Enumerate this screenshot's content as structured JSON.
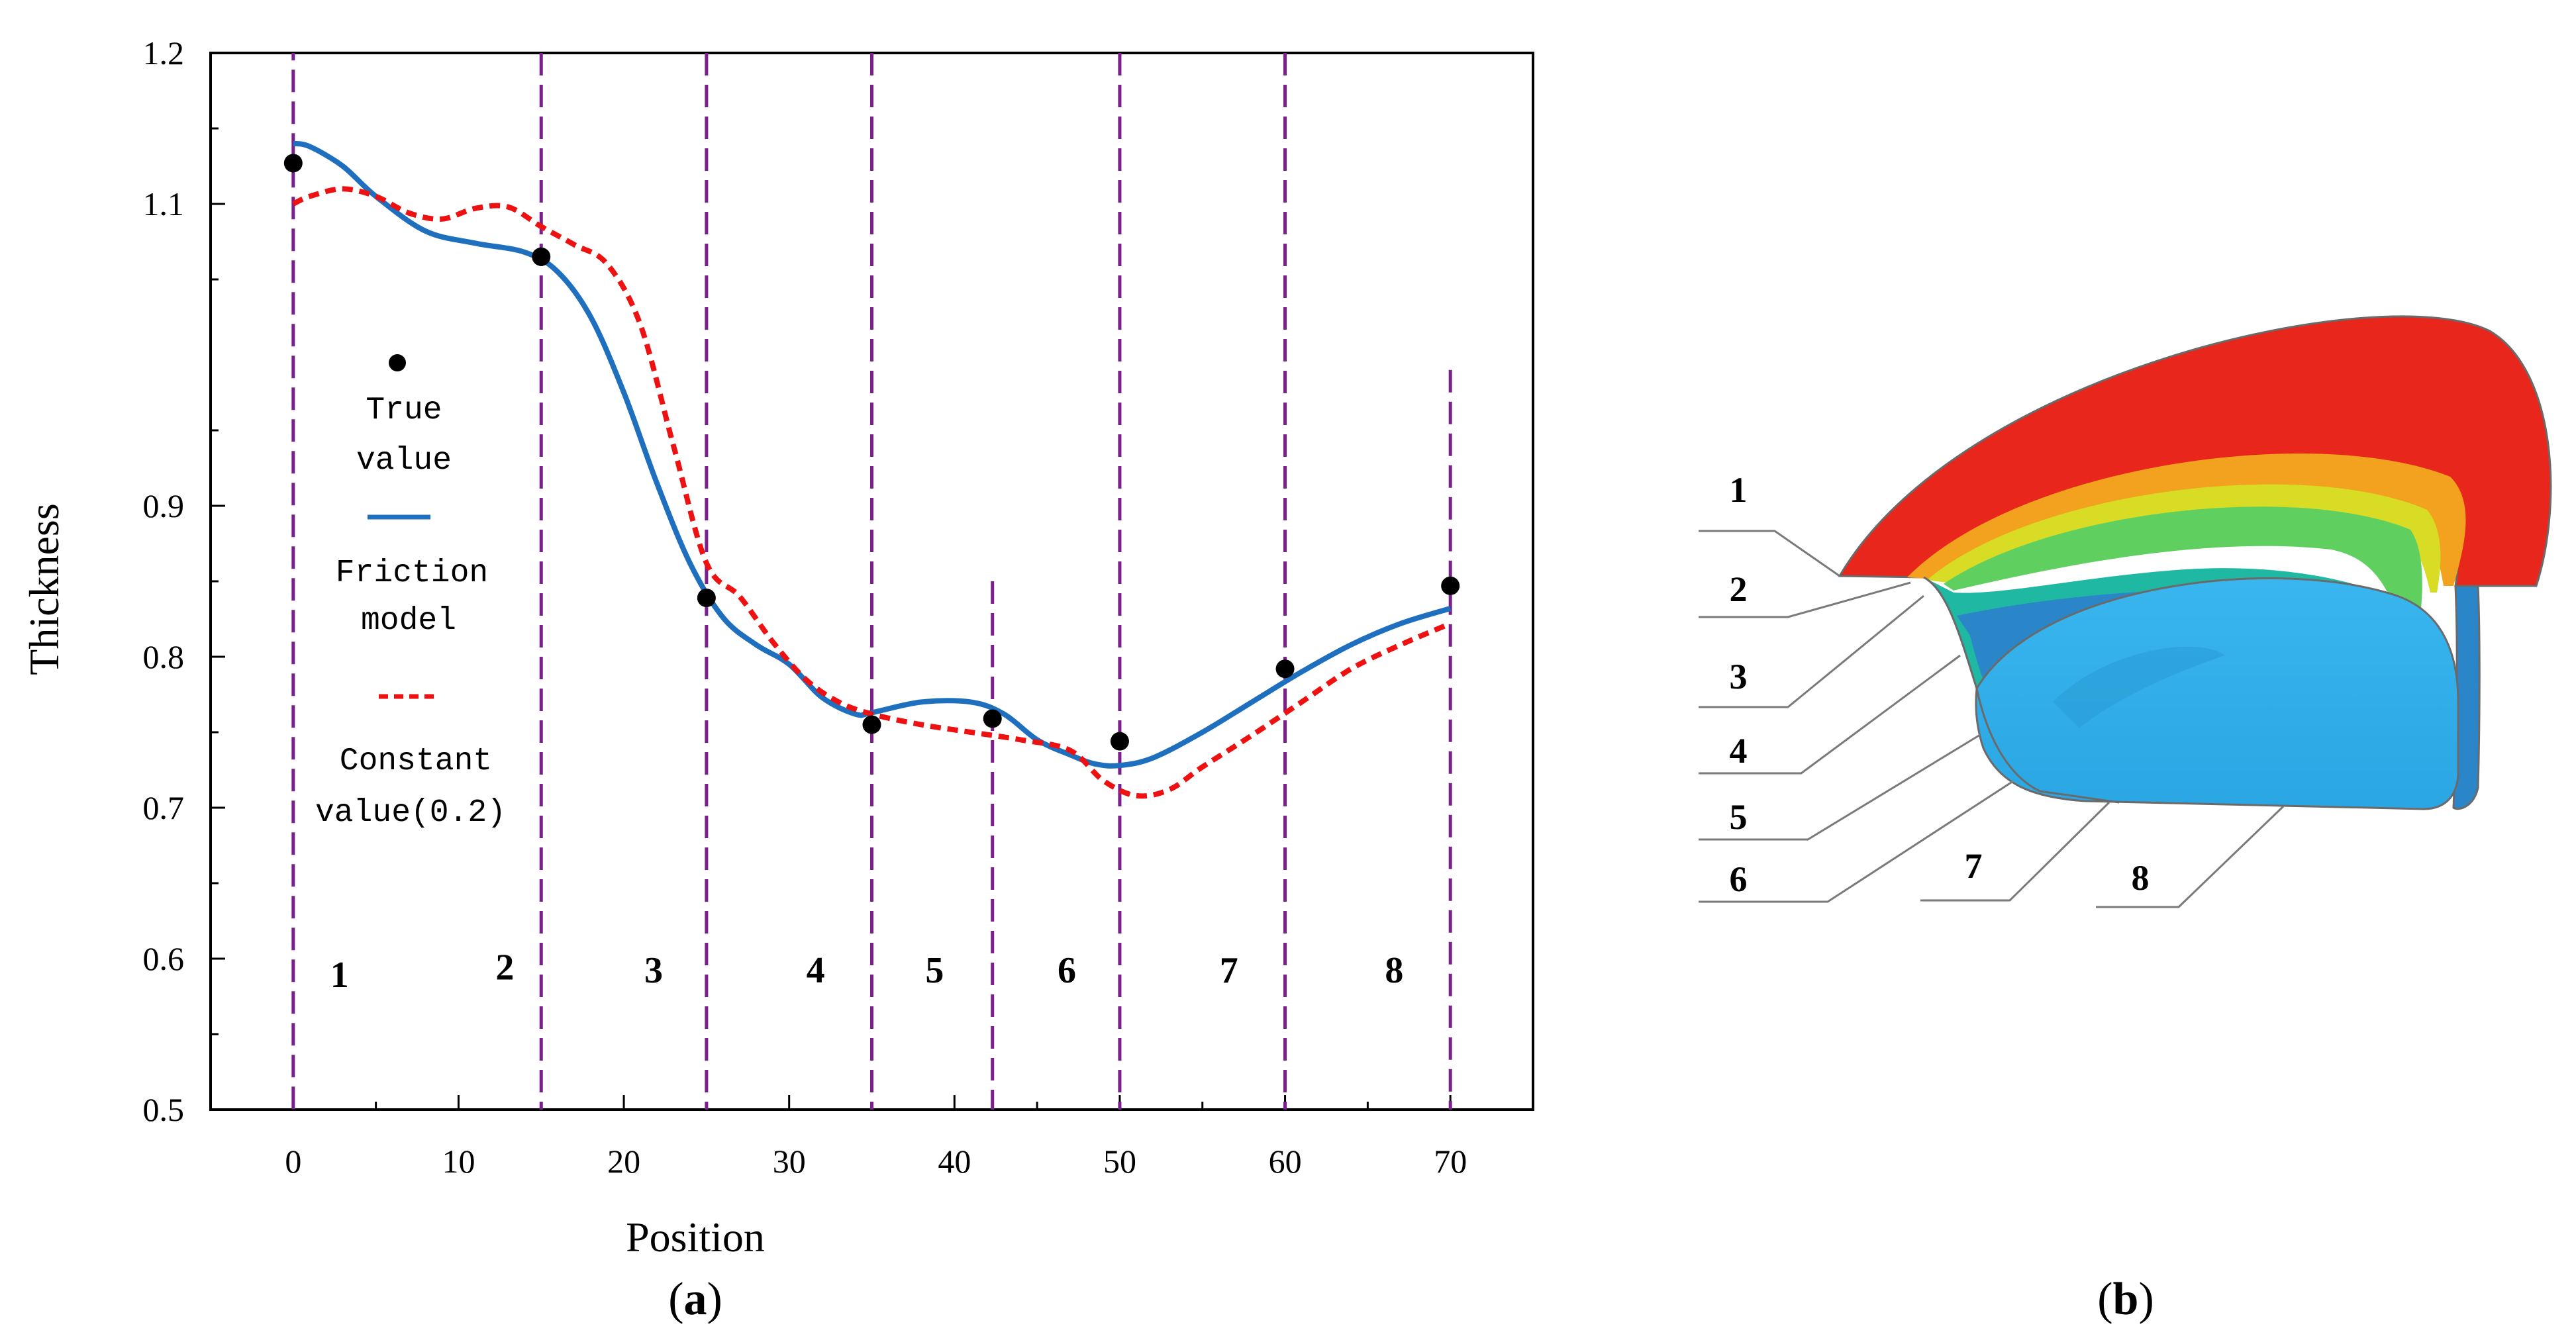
{
  "chart_data": {
    "type": "line",
    "xlabel": "Position",
    "ylabel": "Thickness",
    "xlim": [
      -5,
      75
    ],
    "ylim": [
      0.5,
      1.2
    ],
    "xticks": [
      "0",
      "10",
      "20",
      "30",
      "40",
      "50",
      "60",
      "70"
    ],
    "xtick_values": [
      0,
      10,
      20,
      30,
      40,
      50,
      60,
      70
    ],
    "yticks": [
      "0.5",
      "0.6",
      "0.7",
      "0.8",
      "0.9",
      "1.1",
      "1.2"
    ],
    "ytick_values": [
      0.5,
      0.6,
      0.7,
      0.8,
      0.9,
      1.1,
      1.2
    ],
    "grid": false,
    "legend": {
      "placement": "left",
      "entries": [
        {
          "lines": [
            "True",
            "value"
          ]
        },
        {
          "lines": [
            "Friction",
            "model"
          ]
        },
        {
          "lines": [
            "Constant",
            "value(0.2)"
          ]
        }
      ]
    },
    "series": [
      {
        "name": "True value",
        "kind": "scatter",
        "color": "#000000",
        "x": [
          0,
          15,
          25,
          35,
          42.3,
          50,
          60,
          70
        ],
        "y": [
          1.127,
          1.065,
          0.839,
          0.755,
          0.759,
          0.744,
          0.792,
          0.847
        ]
      },
      {
        "name": "Friction model",
        "kind": "line",
        "color": "#1f6fbf",
        "x": [
          0,
          1,
          3,
          5,
          8,
          11,
          14,
          16,
          18,
          20,
          22,
          24,
          26,
          28,
          30,
          32,
          34,
          35,
          38,
          41,
          43,
          45,
          47,
          48.5,
          50,
          52,
          55,
          58,
          61,
          64,
          67,
          70
        ],
        "y": [
          1.14,
          1.138,
          1.125,
          1.105,
          1.082,
          1.074,
          1.068,
          1.055,
          1.025,
          0.975,
          0.915,
          0.862,
          0.826,
          0.808,
          0.795,
          0.773,
          0.762,
          0.763,
          0.77,
          0.77,
          0.762,
          0.745,
          0.735,
          0.729,
          0.728,
          0.733,
          0.75,
          0.77,
          0.79,
          0.808,
          0.822,
          0.832
        ]
      },
      {
        "name": "Constant value(0.2)",
        "kind": "line",
        "color": "#ee1111",
        "x": [
          0,
          1,
          3,
          5,
          7,
          9,
          11,
          13,
          15,
          17,
          19,
          21,
          23,
          25,
          27,
          29,
          31,
          33,
          35,
          38,
          41,
          44,
          47,
          49,
          51,
          53,
          55,
          58,
          61,
          64,
          67,
          70
        ],
        "y": [
          1.1,
          1.105,
          1.11,
          1.105,
          1.094,
          1.09,
          1.097,
          1.098,
          1.085,
          1.073,
          1.06,
          1.02,
          0.94,
          0.862,
          0.84,
          0.81,
          0.785,
          0.77,
          0.762,
          0.755,
          0.75,
          0.745,
          0.738,
          0.718,
          0.708,
          0.712,
          0.727,
          0.748,
          0.77,
          0.792,
          0.808,
          0.822
        ]
      }
    ],
    "boundaries": [
      {
        "x": 0,
        "y_top": 1.21
      },
      {
        "x": 15,
        "y_top": 1.2
      },
      {
        "x": 25,
        "y_top": 1.2
      },
      {
        "x": 35,
        "y_top": 1.2
      },
      {
        "x": 42.3,
        "y_top": 0.85
      },
      {
        "x": 50,
        "y_top": 1.2
      },
      {
        "x": 60,
        "y_top": 1.2
      },
      {
        "x": 70,
        "y_top": 0.99
      }
    ],
    "region_labels": [
      {
        "text": "1",
        "x": 2.8,
        "y": 0.59
      },
      {
        "text": "2",
        "x": 12.8,
        "y": 0.595
      },
      {
        "text": "3",
        "x": 21.8,
        "y": 0.593
      },
      {
        "text": "4",
        "x": 31.6,
        "y": 0.593
      },
      {
        "text": "5",
        "x": 38.8,
        "y": 0.593
      },
      {
        "text": "6",
        "x": 46.8,
        "y": 0.593
      },
      {
        "text": "7",
        "x": 56.6,
        "y": 0.593
      },
      {
        "text": "8",
        "x": 66.6,
        "y": 0.593
      }
    ],
    "boundary_color": "#7a1f8c"
  },
  "panels": {
    "a_label": "a",
    "b_label": "b"
  },
  "part_diagram": {
    "labels": [
      "1",
      "2",
      "3",
      "4",
      "5",
      "6",
      "7",
      "8"
    ],
    "colors": {
      "red": "#e8261c",
      "orange": "#f2a21e",
      "yellow": "#d8dc24",
      "green": "#5fd060",
      "teal": "#1fb8a2",
      "blue": "#2a86c8",
      "sky": "#2ab0e8"
    }
  }
}
